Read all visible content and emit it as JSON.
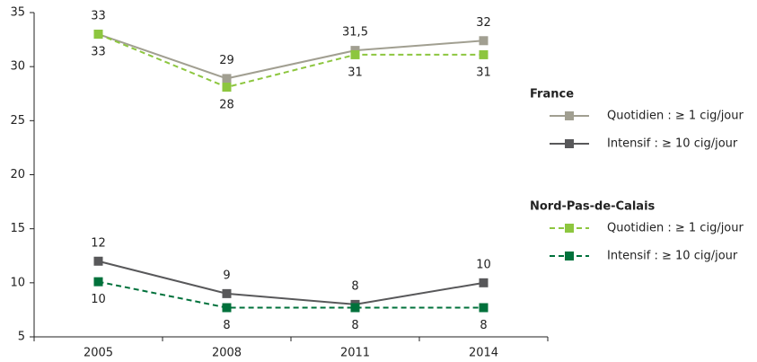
{
  "chart_data": {
    "type": "line",
    "categories": [
      "2005",
      "2008",
      "2011",
      "2014"
    ],
    "ylim": [
      5,
      35
    ],
    "yticks": [
      5,
      10,
      15,
      20,
      25,
      30,
      35
    ],
    "grid": false,
    "legend_position": "right",
    "legend_groups": [
      {
        "title": "France"
      },
      {
        "title": "Nord-Pas-de-Calais"
      }
    ],
    "series": [
      {
        "name": "Quotidien : ≥ 1 cig/jour",
        "group": 0,
        "color": "#a19f91",
        "dashed": false,
        "label_position": "above",
        "values": [
          33,
          28.9,
          31.5,
          32.4
        ],
        "value_labels": [
          "33",
          "29",
          "31,5",
          "32"
        ]
      },
      {
        "name": "Intensif : ≥ 10 cig/jour",
        "group": 0,
        "color": "#58585a",
        "dashed": false,
        "label_position": "above",
        "values": [
          12,
          9,
          8,
          10
        ],
        "value_labels": [
          "12",
          "9",
          "8",
          "10"
        ]
      },
      {
        "name": "Quotidien : ≥ 1 cig/jour",
        "group": 1,
        "color": "#8dc63f",
        "dashed": true,
        "label_position": "below",
        "values": [
          33,
          28.1,
          31.1,
          31.1
        ],
        "value_labels": [
          "33",
          "28",
          "31",
          "31"
        ]
      },
      {
        "name": "Intensif : ≥ 10 cig/jour",
        "group": 1,
        "color": "#00713b",
        "dashed": true,
        "label_position": "below",
        "values": [
          10.1,
          7.7,
          7.7,
          7.7
        ],
        "value_labels": [
          "10",
          "8",
          "8",
          "8"
        ]
      }
    ]
  }
}
